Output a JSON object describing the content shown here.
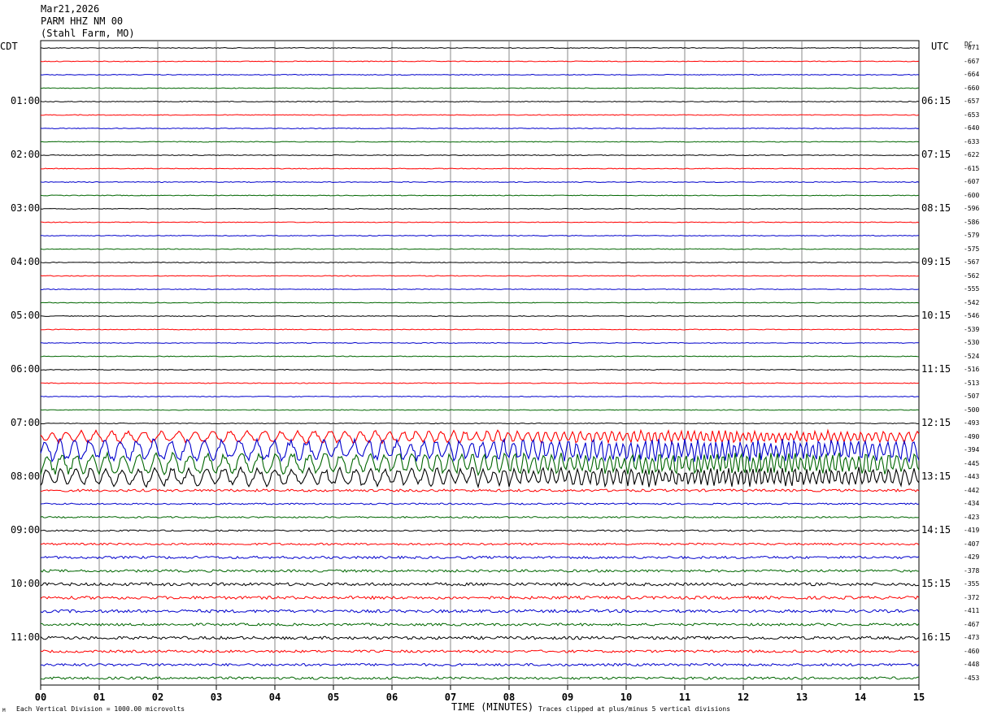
{
  "header": {
    "date": "Mar21,2026",
    "station": "PARM HHZ NM 00",
    "location": "(Stahl Farm, MO)"
  },
  "left_tz": "CDT",
  "right_tz": "UTC",
  "dc_label": "DC",
  "xlabel": "TIME (MINUTES)",
  "footer_left": "Each Vertical Division = 1000.00 microvolts",
  "footer_right": "Traces clipped at plus/minus 5 vertical divisions",
  "footer_mark": "M",
  "chart_data": {
    "type": "line",
    "title": "",
    "xlabel": "TIME (MINUTES)",
    "xlim": [
      0,
      15
    ],
    "x_ticks": [
      "00",
      "01",
      "02",
      "03",
      "04",
      "05",
      "06",
      "07",
      "08",
      "09",
      "10",
      "11",
      "12",
      "13",
      "14",
      "15"
    ],
    "line_colors": [
      "#000000",
      "#ff0000",
      "#0000cc",
      "#006600"
    ],
    "left_hour_labels": [
      "01:00",
      "02:00",
      "03:00",
      "04:00",
      "05:00",
      "06:00",
      "07:00",
      "08:00",
      "09:00",
      "10:00",
      "11:00"
    ],
    "right_hour_labels": [
      "06:15",
      "07:15",
      "08:15",
      "09:15",
      "10:15",
      "11:15",
      "12:15",
      "13:15",
      "14:15",
      "15:15",
      "16:15"
    ],
    "dc_offsets": [
      -671,
      -667,
      -664,
      -660,
      -657,
      -653,
      -640,
      -633,
      -622,
      -615,
      -607,
      -600,
      -596,
      -586,
      -579,
      -575,
      -567,
      -562,
      -555,
      -542,
      -546,
      -539,
      -530,
      -524,
      -516,
      -513,
      -507,
      -500,
      -493,
      -490,
      -394,
      -445,
      -443,
      -442,
      -434,
      -423,
      -419,
      -407,
      -429,
      -378,
      -355,
      -372,
      -411,
      -467,
      -473,
      -460,
      -448,
      -453
    ],
    "trace_activity": [
      1,
      1,
      1,
      1,
      1,
      1,
      1,
      1,
      1,
      1,
      1,
      1,
      1,
      1,
      1,
      1,
      1,
      1,
      1,
      1,
      1,
      1,
      1,
      1,
      1,
      1,
      1,
      1,
      1,
      4,
      7,
      7,
      6,
      3,
      2,
      1.5,
      2,
      2.5,
      3,
      3,
      3.5,
      3.5,
      3.5,
      3,
      3.5,
      3,
      3,
      3
    ]
  }
}
